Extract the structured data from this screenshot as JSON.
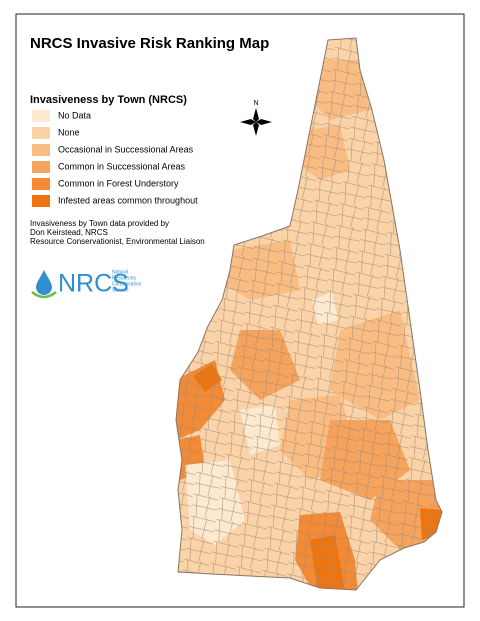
{
  "title": "NRCS Invasive Risk Ranking Map",
  "legend": {
    "title": "Invasiveness by Town (NRCS)",
    "items": [
      {
        "label": "No Data",
        "color": "#fde9d0"
      },
      {
        "label": "None",
        "color": "#fbd3a8"
      },
      {
        "label": "Occasional in Successional Areas",
        "color": "#f9bd84"
      },
      {
        "label": "Common in Successional Areas",
        "color": "#f6a35d"
      },
      {
        "label": "Common in Forest Understory",
        "color": "#f28a36"
      },
      {
        "label": "Infested areas common throughout",
        "color": "#ee7410"
      }
    ]
  },
  "credit": [
    "Invasiveness by Town data provided by",
    "Don Keirstead, NRCS",
    "Resource Conservationist, Environmental Liaison"
  ],
  "logo": {
    "name": "NRCS",
    "subtitle": [
      "Natural",
      "Resources",
      "Conservation",
      "Service"
    ]
  },
  "north": "N"
}
